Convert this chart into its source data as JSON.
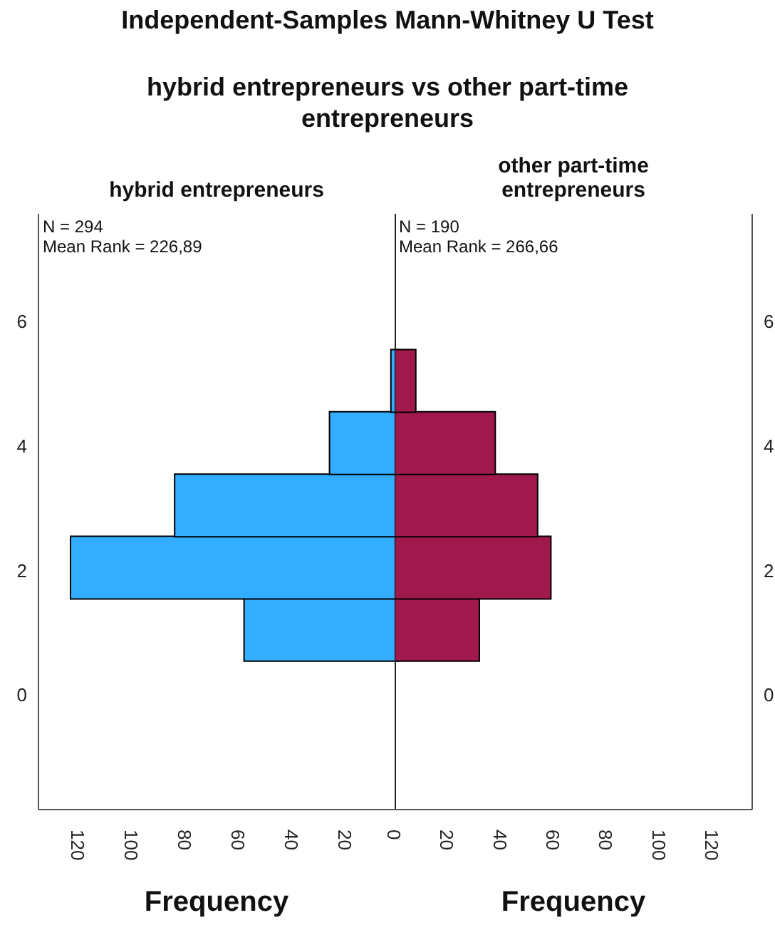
{
  "chart_data": [
    {
      "type": "histogram",
      "title": "Independent-Samples Mann-Whitney U Test",
      "subtitle": "hybrid entrepreneurs vs other part-time entrepreneurs",
      "orientation": "horizontal",
      "xlabel": "Frequency",
      "bins": [
        0.55,
        1.55,
        2.55,
        3.55,
        4.55,
        5.55
      ],
      "series": [
        {
          "name": "hybrid entrepreneurs",
          "color": "#33adff",
          "values": [
            58,
            123,
            84,
            26,
            3
          ]
        }
      ],
      "xlim": [
        135,
        0
      ],
      "xticks": [
        120,
        100,
        80,
        60,
        40,
        20
      ],
      "ylim": [
        -1.84,
        7.73
      ],
      "yticks": [
        0,
        2,
        4,
        6
      ],
      "annotations": [
        "N = 294",
        "Mean Rank = 226,89"
      ]
    },
    {
      "type": "histogram",
      "orientation": "horizontal",
      "xlabel": "Frequency",
      "bins": [
        0.55,
        1.55,
        2.55,
        3.55,
        4.55,
        5.55
      ],
      "series": [
        {
          "name": "other part-time entrepreneurs",
          "color": "#a0194d",
          "values": [
            32,
            59,
            54,
            38,
            8
          ]
        }
      ],
      "xlim": [
        0,
        135
      ],
      "xticks": [
        0,
        20,
        40,
        60,
        80,
        100,
        120
      ],
      "ylim": [
        -1.84,
        7.73
      ],
      "yticks": [
        0,
        2,
        4,
        6
      ],
      "annotations": [
        "N = 190",
        "Mean Rank = 266,66"
      ]
    }
  ]
}
